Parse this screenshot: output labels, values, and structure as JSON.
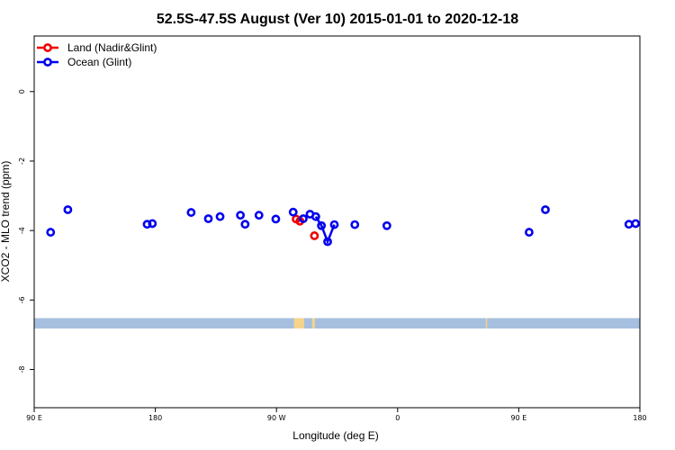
{
  "chart_data": {
    "type": "scatter",
    "title": "52.5S-47.5S August (Ver 10)   2015-01-01 to 2020-12-18",
    "xlabel": "Longitude (deg E)",
    "ylabel": "XCO2 - MLO trend (ppm)",
    "xlim": [
      90,
      540
    ],
    "ylim": [
      -9.1,
      1.6
    ],
    "x_ticks": [
      {
        "value": 90,
        "label": "90 E"
      },
      {
        "value": 180,
        "label": "180"
      },
      {
        "value": 270,
        "label": "90 W"
      },
      {
        "value": 360,
        "label": "0"
      },
      {
        "value": 450,
        "label": "90 E"
      },
      {
        "value": 540,
        "label": "180"
      }
    ],
    "y_ticks": [
      {
        "value": 0,
        "label": "0"
      },
      {
        "value": -2,
        "label": "-2"
      },
      {
        "value": -4,
        "label": "-4"
      },
      {
        "value": -6,
        "label": "-6"
      },
      {
        "value": -8,
        "label": "-8"
      }
    ],
    "legend_position": "top-left",
    "series": [
      {
        "name": "Land (Nadir&Glint)",
        "color": "#ee0000",
        "points": [
          [
            284.6,
            -3.67
          ],
          [
            287.4,
            -3.73
          ],
          [
            298.2,
            -4.15
          ]
        ],
        "lines": []
      },
      {
        "name": "Ocean (Glint)",
        "color": "#0000ee",
        "points": [
          [
            102.2,
            -4.05
          ],
          [
            115.0,
            -3.4
          ],
          [
            173.9,
            -3.82
          ],
          [
            177.8,
            -3.8
          ],
          [
            206.6,
            -3.48
          ],
          [
            219.4,
            -3.66
          ],
          [
            228.1,
            -3.6
          ],
          [
            243.2,
            -3.56
          ],
          [
            246.7,
            -3.82
          ],
          [
            257.0,
            -3.56
          ],
          [
            269.5,
            -3.67
          ],
          [
            282.4,
            -3.47
          ],
          [
            289.9,
            -3.66
          ],
          [
            294.9,
            -3.53
          ],
          [
            299.2,
            -3.6
          ],
          [
            303.4,
            -3.86
          ],
          [
            308.0,
            -4.32
          ],
          [
            313.0,
            -3.83
          ],
          [
            328.2,
            -3.83
          ],
          [
            352.0,
            -3.86
          ],
          [
            457.7,
            -4.05
          ],
          [
            469.8,
            -3.4
          ],
          [
            531.8,
            -3.82
          ],
          [
            536.8,
            -3.8
          ]
        ],
        "lines": [
          [
            [
              299.2,
              -3.6
            ],
            [
              303.4,
              -3.86
            ],
            [
              308.0,
              -4.32
            ],
            [
              313.0,
              -3.83
            ]
          ]
        ]
      }
    ],
    "background_map": {
      "ocean_color": "#a7bfdf",
      "land_color": "#f5d48a",
      "lat_band": [
        -52.5,
        -47.5
      ],
      "land_patches": [
        {
          "xmin": 283.0,
          "xmax": 290.5
        },
        {
          "xmin": 296.5,
          "xmax": 298.5
        },
        {
          "xmin": 425.5,
          "xmax": 426.5
        }
      ]
    },
    "grid": false
  }
}
